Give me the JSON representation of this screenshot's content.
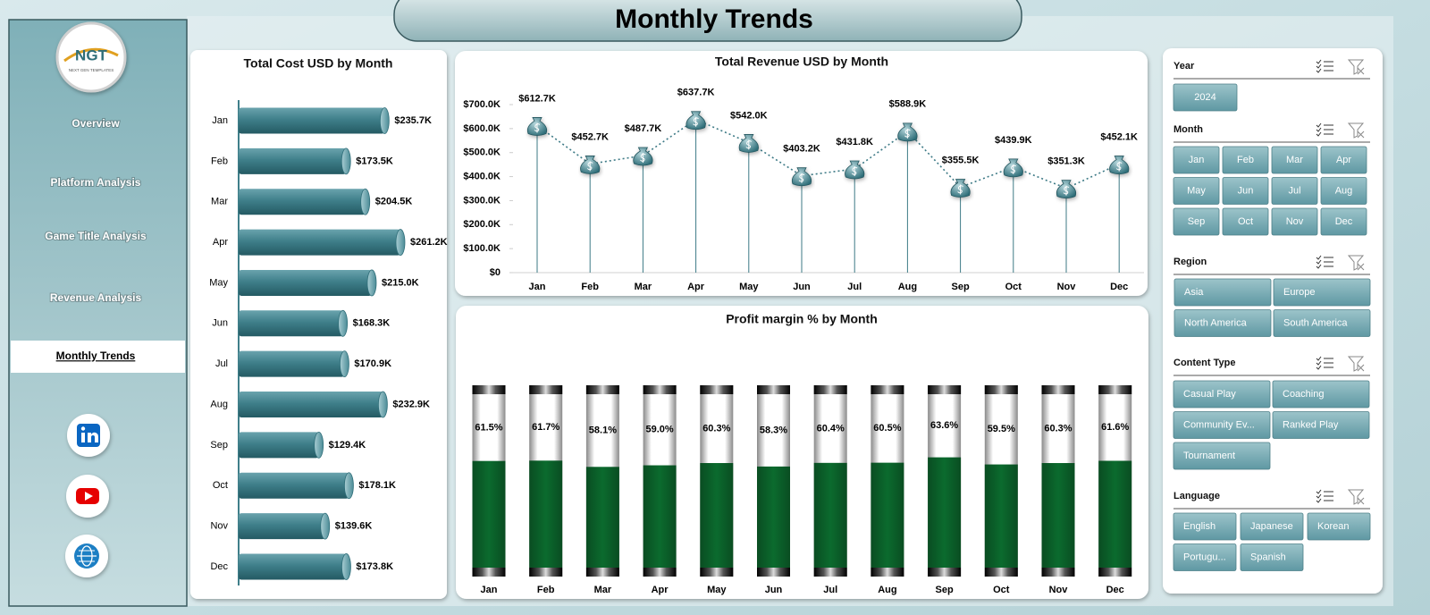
{
  "header": {
    "title": "Monthly Trends"
  },
  "logo": {
    "text": "NGT",
    "tagline": "NEXT GEN TEMPLATES"
  },
  "nav": {
    "items": [
      "Overview",
      "Platform Analysis",
      "Game Title Analysis",
      "Revenue Analysis",
      "Monthly Trends"
    ],
    "active": 4
  },
  "chart_data": [
    {
      "type": "bar",
      "orientation": "horizontal",
      "title": "Total Cost USD by Month",
      "categories": [
        "Jan",
        "Feb",
        "Mar",
        "Apr",
        "May",
        "Jun",
        "Jul",
        "Aug",
        "Sep",
        "Oct",
        "Nov",
        "Dec"
      ],
      "values": [
        235700,
        173500,
        204500,
        261200,
        215000,
        168300,
        170900,
        232900,
        129400,
        178100,
        139600,
        173800
      ],
      "value_labels": [
        "$235.7K",
        "$173.5K",
        "$204.5K",
        "$261.2K",
        "$215.0K",
        "$168.3K",
        "$170.9K",
        "$232.9K",
        "$129.4K",
        "$178.1K",
        "$139.6K",
        "$173.8K"
      ],
      "color": "#3f7f8a"
    },
    {
      "type": "line",
      "title": "Total Revenue USD by Month",
      "categories": [
        "Jan",
        "Feb",
        "Mar",
        "Apr",
        "May",
        "Jun",
        "Jul",
        "Aug",
        "Sep",
        "Oct",
        "Nov",
        "Dec"
      ],
      "values": [
        612700,
        452700,
        487700,
        637700,
        542000,
        403200,
        431800,
        588900,
        355500,
        439900,
        351300,
        452100
      ],
      "value_labels": [
        "$612.7K",
        "$452.7K",
        "$487.7K",
        "$637.7K",
        "$542.0K",
        "$403.2K",
        "$431.8K",
        "$588.9K",
        "$355.5K",
        "$439.9K",
        "$351.3K",
        "$452.1K"
      ],
      "ylim": [
        0,
        700000
      ],
      "yticks": [
        {
          "value": 0,
          "label": "$0"
        },
        {
          "value": 100000,
          "label": "$100.0K"
        },
        {
          "value": 200000,
          "label": "$200.0K"
        },
        {
          "value": 300000,
          "label": "$300.0K"
        },
        {
          "value": 400000,
          "label": "$400.0K"
        },
        {
          "value": 500000,
          "label": "$500.0K"
        },
        {
          "value": 600000,
          "label": "$600.0K"
        },
        {
          "value": 700000,
          "label": "$700.0K"
        }
      ],
      "color": "#3d7a86"
    },
    {
      "type": "bar",
      "orientation": "vertical",
      "title": "Profit margin % by Month",
      "categories": [
        "Jan",
        "Feb",
        "Mar",
        "Apr",
        "May",
        "Jun",
        "Jul",
        "Aug",
        "Sep",
        "Oct",
        "Nov",
        "Dec"
      ],
      "values": [
        61.5,
        61.7,
        58.1,
        59.0,
        60.3,
        58.3,
        60.4,
        60.5,
        63.6,
        59.5,
        60.3,
        61.6
      ],
      "value_labels": [
        "61.5%",
        "61.7%",
        "58.1%",
        "59.0%",
        "60.3%",
        "58.3%",
        "60.4%",
        "60.5%",
        "63.6%",
        "59.5%",
        "60.3%",
        "61.6%"
      ],
      "ylim": [
        0,
        100
      ],
      "color": "#0b6b2e"
    }
  ],
  "slicers": [
    {
      "title": "Year",
      "items": [
        "2024"
      ]
    },
    {
      "title": "Month",
      "items": [
        "Jan",
        "Feb",
        "Mar",
        "Apr",
        "May",
        "Jun",
        "Jul",
        "Aug",
        "Sep",
        "Oct",
        "Nov",
        "Dec"
      ]
    },
    {
      "title": "Region",
      "items": [
        "Asia",
        "Europe",
        "North America",
        "South America"
      ]
    },
    {
      "title": "Content Type",
      "items": [
        "Casual Play",
        "Coaching",
        "Community Ev...",
        "Ranked Play",
        "Tournament"
      ]
    },
    {
      "title": "Language",
      "items": [
        "English",
        "Japanese",
        "Korean",
        "Portugu...",
        "Spanish"
      ]
    }
  ]
}
